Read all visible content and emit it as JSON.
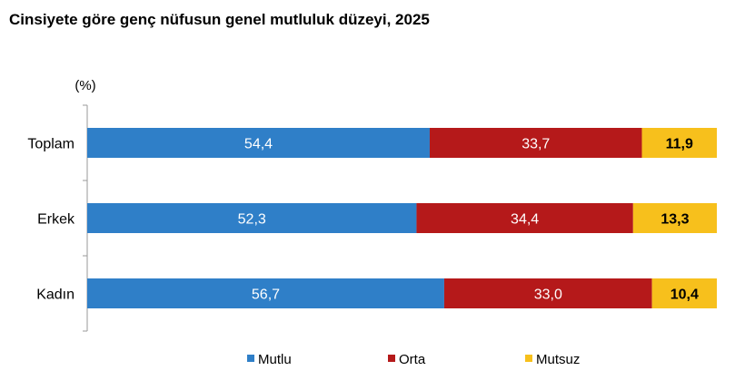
{
  "chart_data": {
    "type": "bar",
    "orientation": "horizontal",
    "stacked": true,
    "title": "Cinsiyete göre genç nüfusun genel mutluluk düzeyi, 2025",
    "unit_label": "(%)",
    "categories": [
      "Toplam",
      "Erkek",
      "Kadın"
    ],
    "series": [
      {
        "name": "Mutlu",
        "color": "#2f7fc8",
        "label_color": "#ffffff",
        "values": [
          54.4,
          52.3,
          56.7
        ],
        "labels": [
          "54,4",
          "52,3",
          "56,7"
        ]
      },
      {
        "name": "Orta",
        "color": "#b5191a",
        "label_color": "#ffffff",
        "values": [
          33.7,
          34.4,
          33.0
        ],
        "labels": [
          "33,7",
          "34,4",
          "33,0"
        ]
      },
      {
        "name": "Mutsuz",
        "color": "#f7c01c",
        "label_color": "#000000",
        "values": [
          11.9,
          13.3,
          10.4
        ],
        "labels": [
          "11,9",
          "13,3",
          "10,4"
        ]
      }
    ],
    "xlim": [
      0,
      100
    ],
    "grid": false,
    "legend_position": "bottom"
  }
}
